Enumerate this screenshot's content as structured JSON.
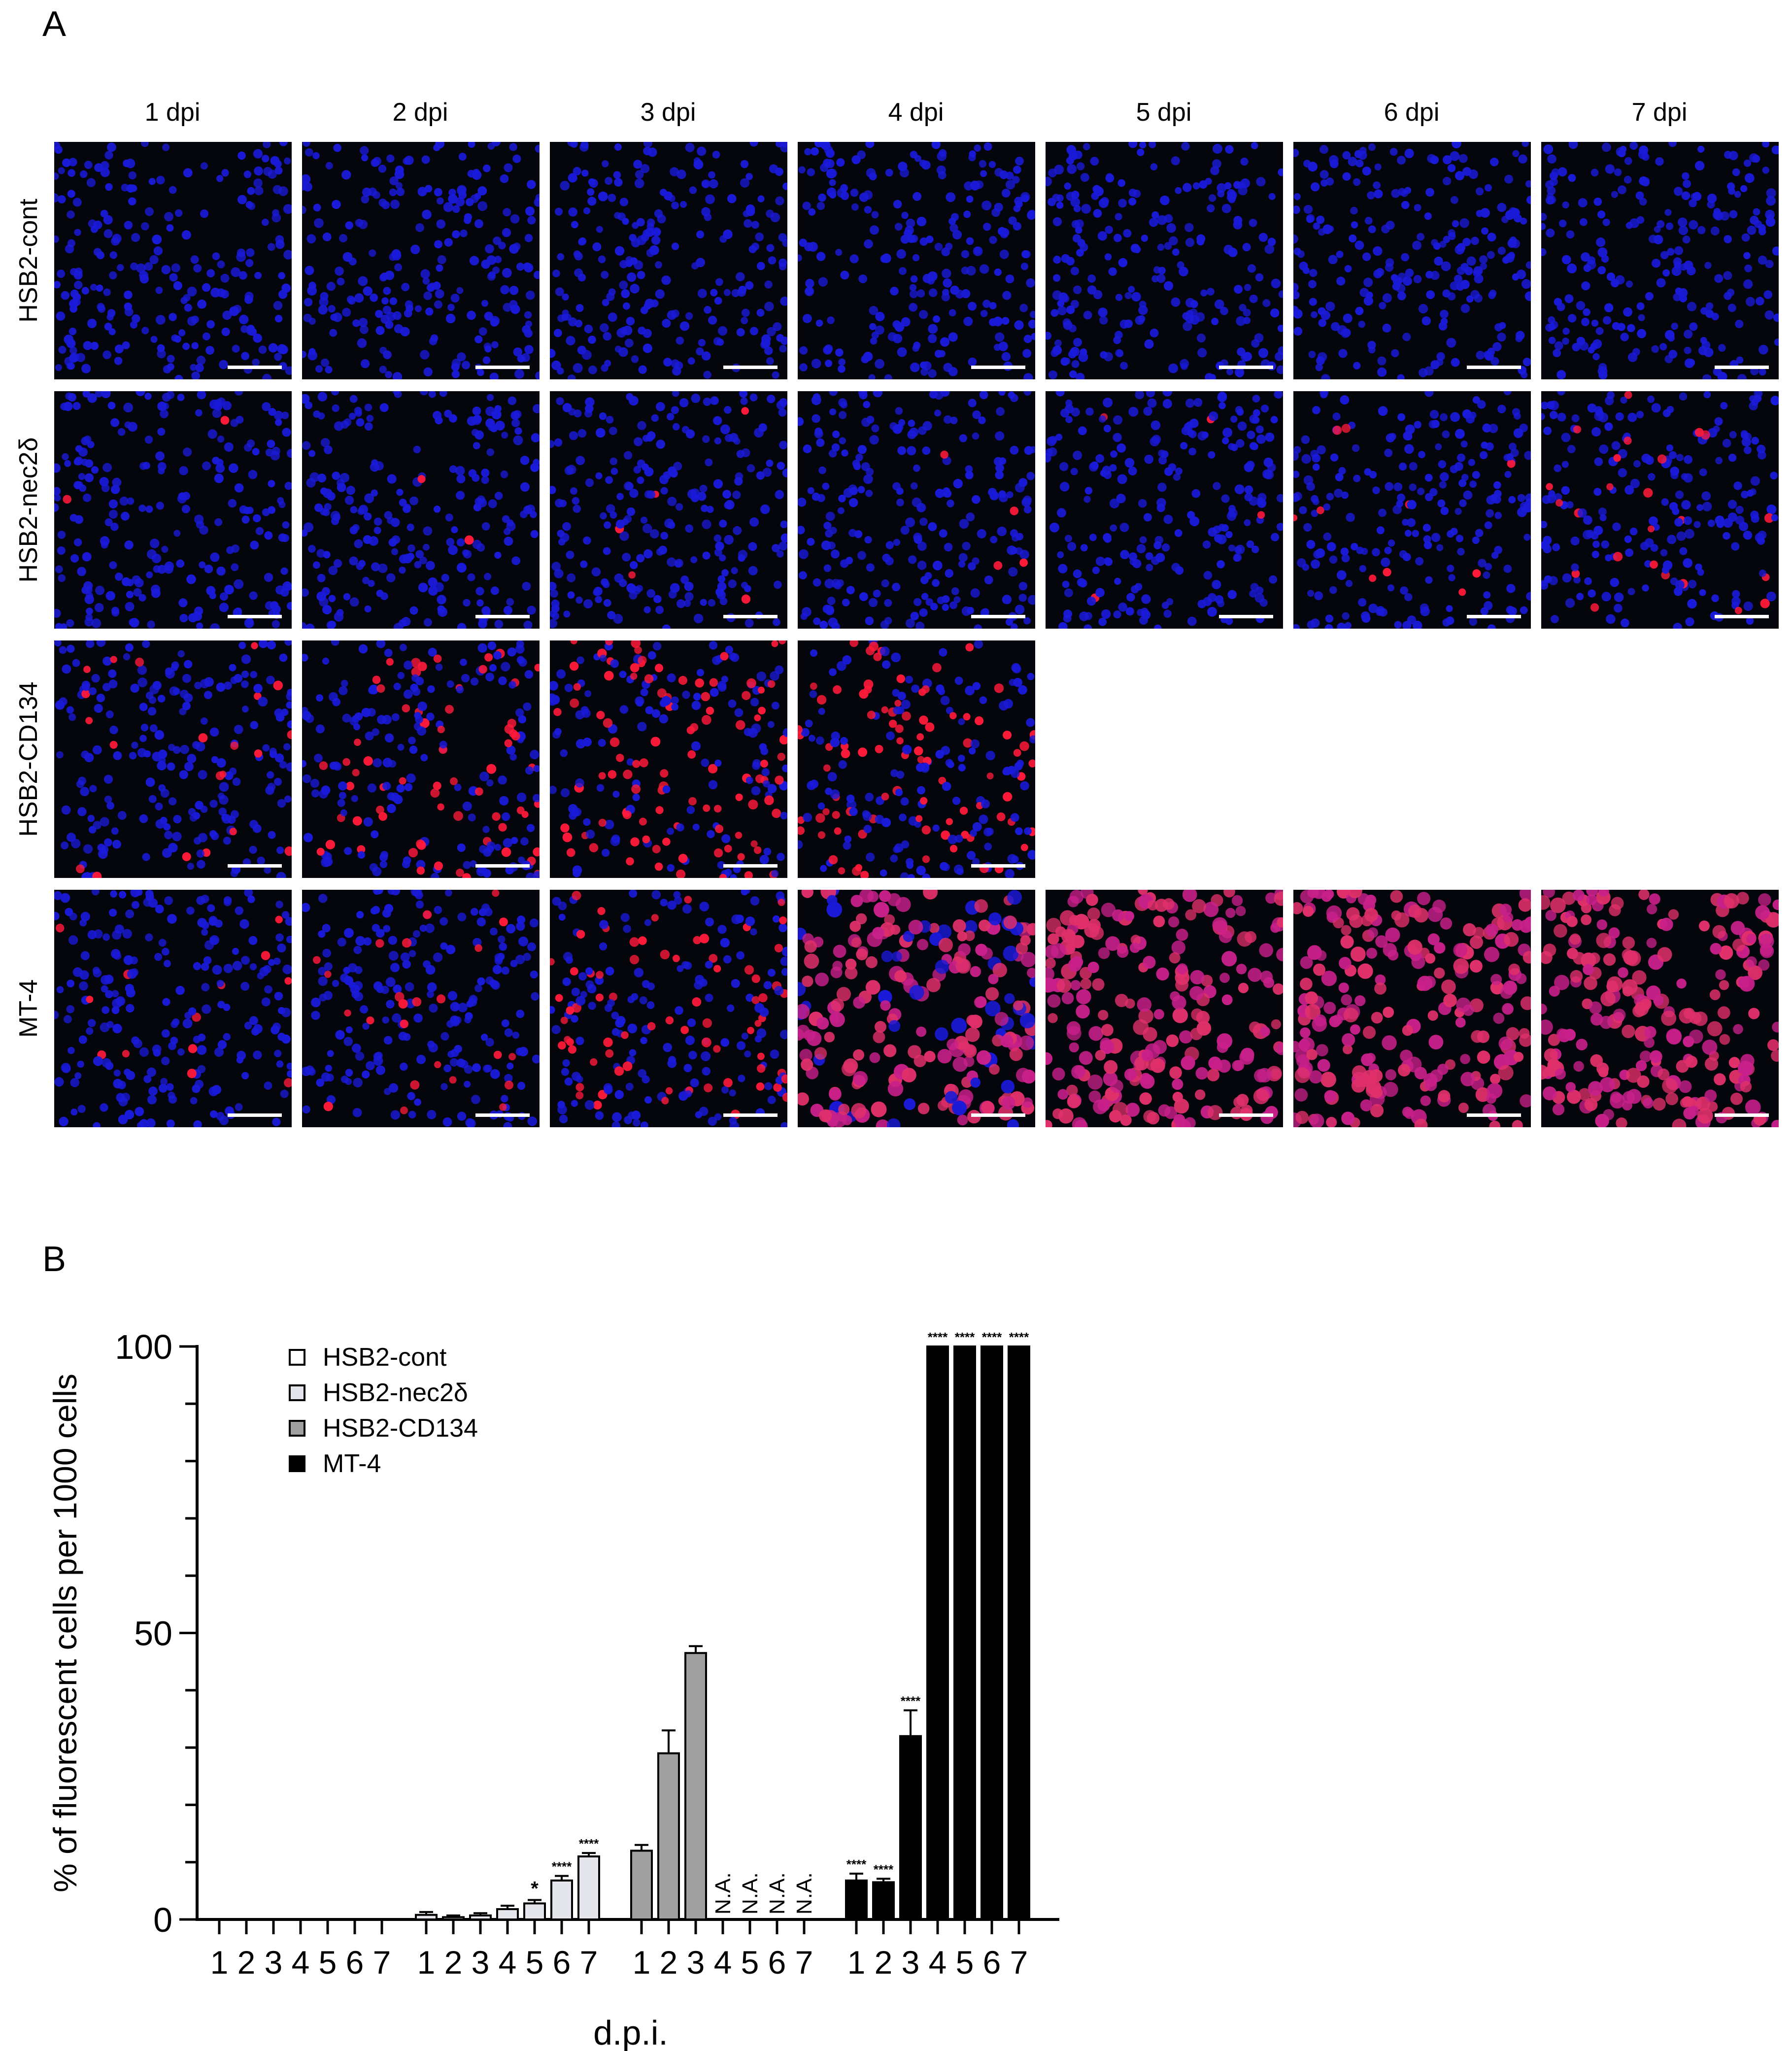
{
  "panelA": {
    "label": "A",
    "columns": [
      "1 dpi",
      "2 dpi",
      "3 dpi",
      "4 dpi",
      "5 dpi",
      "6 dpi",
      "7 dpi"
    ],
    "rows": [
      {
        "name": "HSB2-cont",
        "tiles": [
          0,
          0,
          0,
          0,
          0,
          0,
          0
        ]
      },
      {
        "name": "HSB2-nec2δ",
        "tiles": [
          0.02,
          0.02,
          0.02,
          0.03,
          0.03,
          0.06,
          0.08
        ]
      },
      {
        "name": "HSB2-CD134",
        "tiles": [
          0.1,
          0.3,
          0.45,
          0.4,
          null,
          null,
          null
        ]
      },
      {
        "name": "MT-4",
        "tiles": [
          0.06,
          0.07,
          0.32,
          0.8,
          1,
          1,
          1
        ]
      }
    ],
    "colors": {
      "nuclei": "#1a1ad9",
      "fluorescent": "#ff1a3a",
      "background": "#05050c"
    }
  },
  "panelB": {
    "label": "B"
  },
  "chart_data": {
    "type": "bar",
    "ylabel": "% of fluorescent cells per 1000 cells",
    "xlabel": "d.p.i.",
    "ylim": [
      0,
      100
    ],
    "yticks": [
      0,
      50,
      100
    ],
    "categories": [
      "1",
      "2",
      "3",
      "4",
      "5",
      "6",
      "7"
    ],
    "legend_position": "top-left",
    "series": [
      {
        "name": "HSB2-cont",
        "color": "#ffffff",
        "values": [
          0,
          0,
          0,
          0,
          0,
          0,
          0
        ],
        "errors": [
          0,
          0,
          0,
          0,
          0,
          0,
          0
        ],
        "annotations": [
          "",
          "",
          "",
          "",
          "",
          "",
          ""
        ]
      },
      {
        "name": "HSB2-nec2δ",
        "color": "#e4e6ec",
        "values": [
          0.8,
          0.4,
          0.7,
          1.8,
          2.8,
          6.8,
          11
        ],
        "errors": [
          0.5,
          0.3,
          0.4,
          0.6,
          0.6,
          0.8,
          0.6
        ],
        "annotations": [
          "",
          "",
          "",
          "",
          "*",
          "****",
          "****"
        ]
      },
      {
        "name": "HSB2-CD134",
        "color": "#a0a0a0",
        "values": [
          12,
          29,
          46.5,
          null,
          null,
          null,
          null
        ],
        "errors": [
          1,
          4,
          1.2,
          0,
          0,
          0,
          0
        ],
        "annotations": [
          "",
          "",
          "",
          "N.A.",
          "N.A.",
          "N.A.",
          "N.A."
        ]
      },
      {
        "name": "MT-4",
        "color": "#000000",
        "values": [
          6.8,
          6.5,
          32,
          100,
          100,
          100,
          100
        ],
        "errors": [
          1.2,
          0.6,
          4.5,
          0,
          0,
          0,
          0
        ],
        "annotations": [
          "****",
          "****",
          "****",
          "****",
          "****",
          "****",
          "****"
        ]
      }
    ]
  }
}
